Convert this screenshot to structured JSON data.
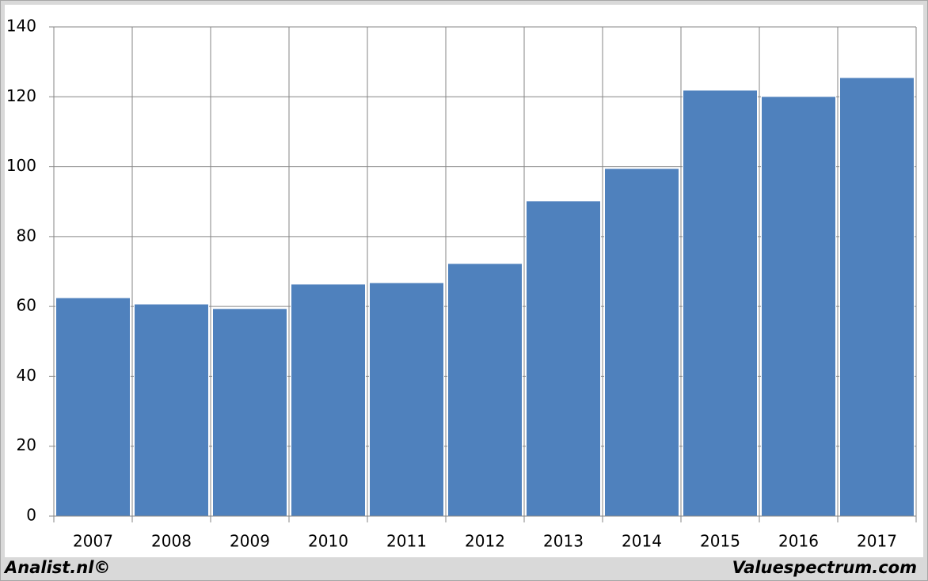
{
  "chart_data": {
    "type": "bar",
    "categories": [
      "2007",
      "2008",
      "2009",
      "2010",
      "2011",
      "2012",
      "2013",
      "2014",
      "2015",
      "2016",
      "2017"
    ],
    "values": [
      62.5,
      60.7,
      59.4,
      66.4,
      66.8,
      72.3,
      90.2,
      99.5,
      121.9,
      120.1,
      125.5
    ],
    "color": "#4f81bd",
    "ylim": [
      0,
      140
    ],
    "yticks": [
      0,
      20,
      40,
      60,
      80,
      100,
      120,
      140
    ],
    "grid": true,
    "footer_left": "Analist.nl©",
    "footer_right": "Valuespectrum.com"
  }
}
